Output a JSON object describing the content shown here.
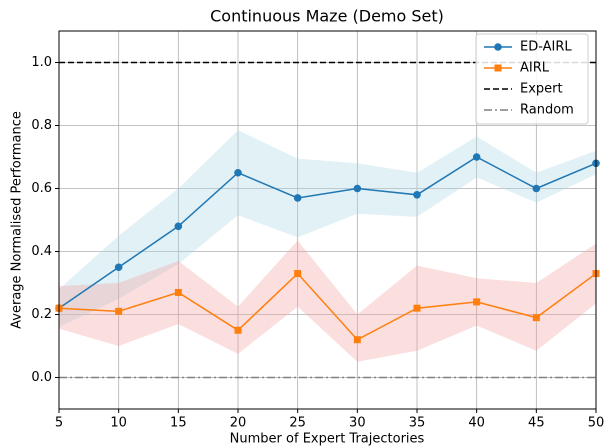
{
  "chart_data": {
    "type": "line",
    "title": "Continuous Maze (Demo Set)",
    "xlabel": "Number of Expert Trajectories",
    "ylabel": "Average Normalised Performance",
    "x": [
      5,
      10,
      15,
      20,
      25,
      30,
      35,
      40,
      45,
      50
    ],
    "series": [
      {
        "name": "ED-AIRL",
        "color": "#1f77b4",
        "band_color": "#add8e6",
        "marker": "circle",
        "values": [
          0.22,
          0.35,
          0.48,
          0.65,
          0.57,
          0.6,
          0.58,
          0.7,
          0.6,
          0.68
        ],
        "upper": [
          0.28,
          0.45,
          0.6,
          0.785,
          0.695,
          0.68,
          0.65,
          0.765,
          0.65,
          0.72
        ],
        "lower": [
          0.16,
          0.25,
          0.36,
          0.515,
          0.445,
          0.52,
          0.51,
          0.635,
          0.555,
          0.645
        ]
      },
      {
        "name": "AIRL",
        "color": "#ff7f0e",
        "band_color": "#f4a0a0",
        "marker": "square",
        "values": [
          0.22,
          0.21,
          0.27,
          0.15,
          0.33,
          0.12,
          0.22,
          0.24,
          0.19,
          0.33
        ],
        "upper": [
          0.29,
          0.3,
          0.37,
          0.225,
          0.435,
          0.2,
          0.355,
          0.315,
          0.3,
          0.425
        ],
        "lower": [
          0.155,
          0.1,
          0.17,
          0.075,
          0.225,
          0.05,
          0.085,
          0.165,
          0.085,
          0.235
        ]
      }
    ],
    "hlines": [
      {
        "name": "Expert",
        "value": 1.0,
        "color": "#000000",
        "dash": "6 3"
      },
      {
        "name": "Random",
        "value": 0.0,
        "color": "#808080",
        "dash": "8 3 2 3"
      }
    ],
    "xlim": [
      5,
      50
    ],
    "xticks": [
      5,
      10,
      15,
      20,
      25,
      30,
      35,
      40,
      45,
      50
    ],
    "ylim": [
      -0.1,
      1.1
    ],
    "yticks": [
      {
        "value": 0,
        "label": "0.0"
      },
      0.2,
      0.4,
      0.6,
      0.8,
      {
        "value": 1,
        "label": "1.0"
      }
    ],
    "grid": true,
    "legend": "upper right"
  }
}
